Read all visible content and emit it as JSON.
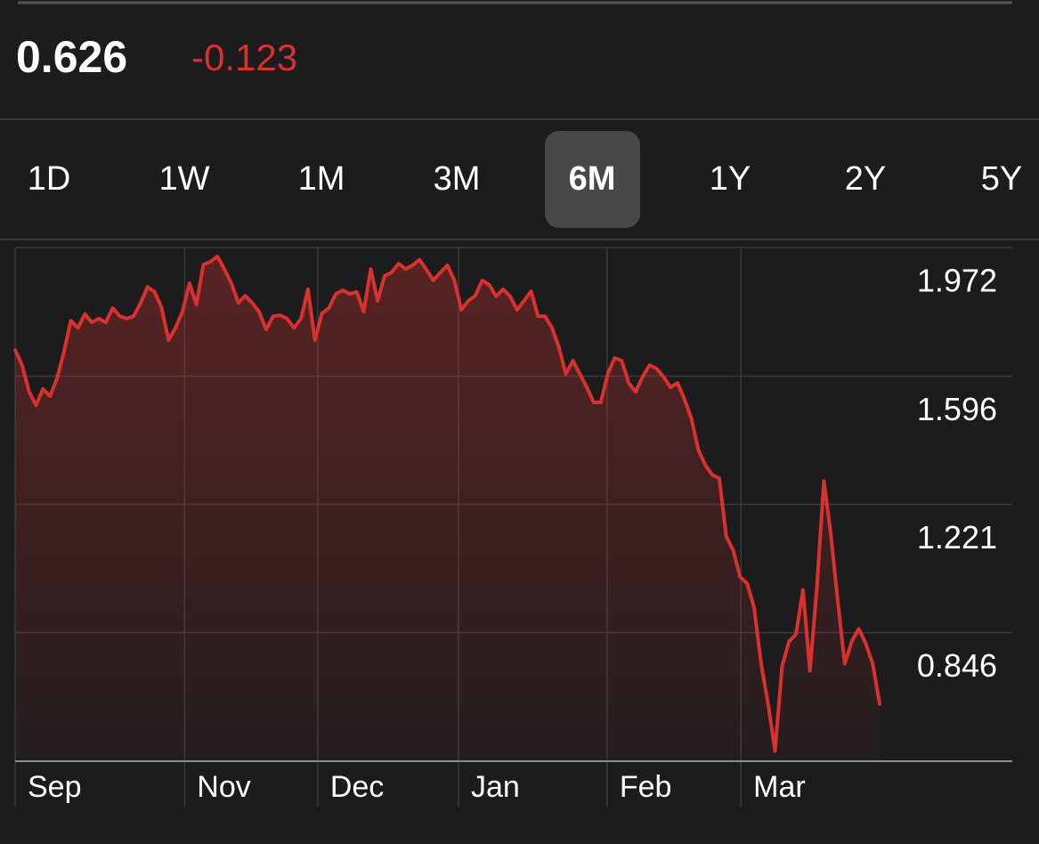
{
  "header": {
    "price": "0.626",
    "change": "-0.123"
  },
  "tabs": {
    "items": [
      "1D",
      "1W",
      "1M",
      "3M",
      "6M",
      "1Y",
      "2Y",
      "5Y"
    ],
    "selected": "6M"
  },
  "chart_data": {
    "type": "line",
    "color": "#d9322e",
    "grid": true,
    "values": [
      1.672,
      1.628,
      1.55,
      1.511,
      1.558,
      1.537,
      1.589,
      1.667,
      1.758,
      1.737,
      1.777,
      1.753,
      1.764,
      1.753,
      1.795,
      1.771,
      1.764,
      1.771,
      1.81,
      1.857,
      1.842,
      1.797,
      1.701,
      1.737,
      1.784,
      1.868,
      1.805,
      1.922,
      1.93,
      1.946,
      1.909,
      1.868,
      1.81,
      1.831,
      1.81,
      1.784,
      1.732,
      1.771,
      1.774,
      1.764,
      1.737,
      1.764,
      1.85,
      1.701,
      1.779,
      1.795,
      1.836,
      1.847,
      1.836,
      1.842,
      1.784,
      1.909,
      1.816,
      1.889,
      1.899,
      1.925,
      1.909,
      1.92,
      1.936,
      1.907,
      1.876,
      1.899,
      1.92,
      1.876,
      1.79,
      1.816,
      1.831,
      1.876,
      1.863,
      1.829,
      1.85,
      1.829,
      1.79,
      1.816,
      1.844,
      1.771,
      1.771,
      1.737,
      1.68,
      1.602,
      1.641,
      1.602,
      1.563,
      1.519,
      1.519,
      1.602,
      1.649,
      1.641,
      1.576,
      1.55,
      1.594,
      1.628,
      1.618,
      1.594,
      1.563,
      1.576,
      1.529,
      1.472,
      1.38,
      1.336,
      1.307,
      1.297,
      1.128,
      1.086,
      1.008,
      0.99,
      0.919,
      0.755,
      0.638,
      0.5,
      0.747,
      0.82,
      0.841,
      0.971,
      0.734,
      0.977,
      1.289,
      1.133,
      0.937,
      0.755,
      0.82,
      0.857,
      0.815,
      0.755,
      0.638
    ],
    "xlim": [
      0,
      124
    ],
    "xticks": [
      {
        "value": 0,
        "label": "Sep"
      },
      {
        "value": 24.3,
        "label": "Nov"
      },
      {
        "value": 43.4,
        "label": "Dec"
      },
      {
        "value": 63.6,
        "label": "Jan"
      },
      {
        "value": 84.9,
        "label": "Feb"
      },
      {
        "value": 104.1,
        "label": "Mar"
      }
    ],
    "ylim": [
      0.47,
      1.972
    ],
    "yticks": [
      0.846,
      1.221,
      1.596,
      1.972
    ]
  }
}
